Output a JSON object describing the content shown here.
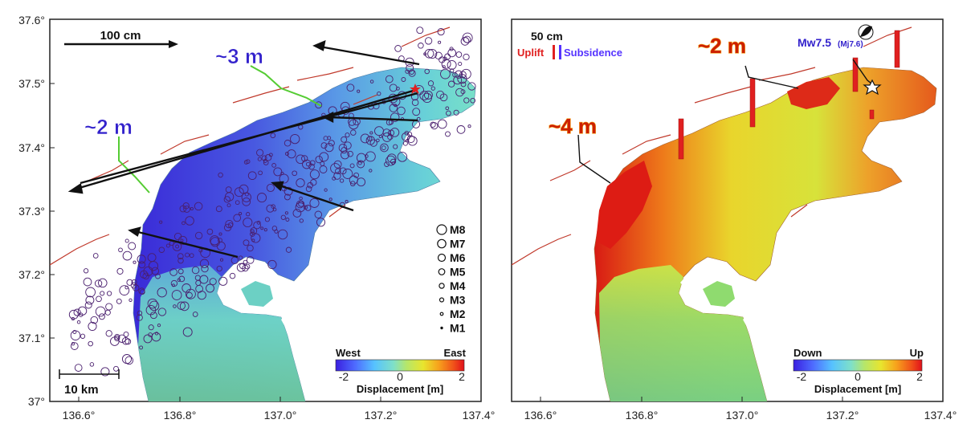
{
  "left_panel": {
    "y_ticks": [
      "37.6°",
      "37.5°",
      "37.4°",
      "37.3°",
      "37.2°",
      "37.1°",
      "37°"
    ],
    "x_ticks": [
      "136.6°",
      "136.8°",
      "137.0°",
      "137.2°",
      "137.4°"
    ],
    "scale_vector_label": "100 cm",
    "annotation_3m": "~3 m",
    "annotation_2m": "~2 m",
    "scale_bar_label": "10 km",
    "magnitude_legend": [
      "M8",
      "M7",
      "M6",
      "M5",
      "M4",
      "M3",
      "M2",
      "M1"
    ],
    "colorbar": {
      "left_label": "West",
      "right_label": "East",
      "min_label": "-2",
      "mid_label": "0",
      "max_label": "2",
      "title": "Displacement [m]"
    }
  },
  "right_panel": {
    "x_ticks": [
      "136.6°",
      "136.8°",
      "137.0°",
      "137.2°",
      "137.4°"
    ],
    "scale_label": "50 cm",
    "uplift_label": "Uplift",
    "subsidence_label": "Subsidence",
    "annotation_2m": "~2 m",
    "annotation_4m": "~4 m",
    "epicenter_label": "Mw7.5",
    "epicenter_sub_label": "(Mj7.6)",
    "colorbar": {
      "left_label": "Down",
      "right_label": "Up",
      "min_label": "-2",
      "mid_label": "0",
      "max_label": "2",
      "title": "Displacement [m]"
    }
  },
  "colors": {
    "vector": "#111111",
    "fault": "#c0392b",
    "uplift": "#e02020",
    "subsidence": "#5533ff",
    "annot_blue": "#3322cc",
    "annot_red_fill": "#cc1f00",
    "annot_orange_outline": "#f5a623",
    "green_line": "#55cc33"
  }
}
